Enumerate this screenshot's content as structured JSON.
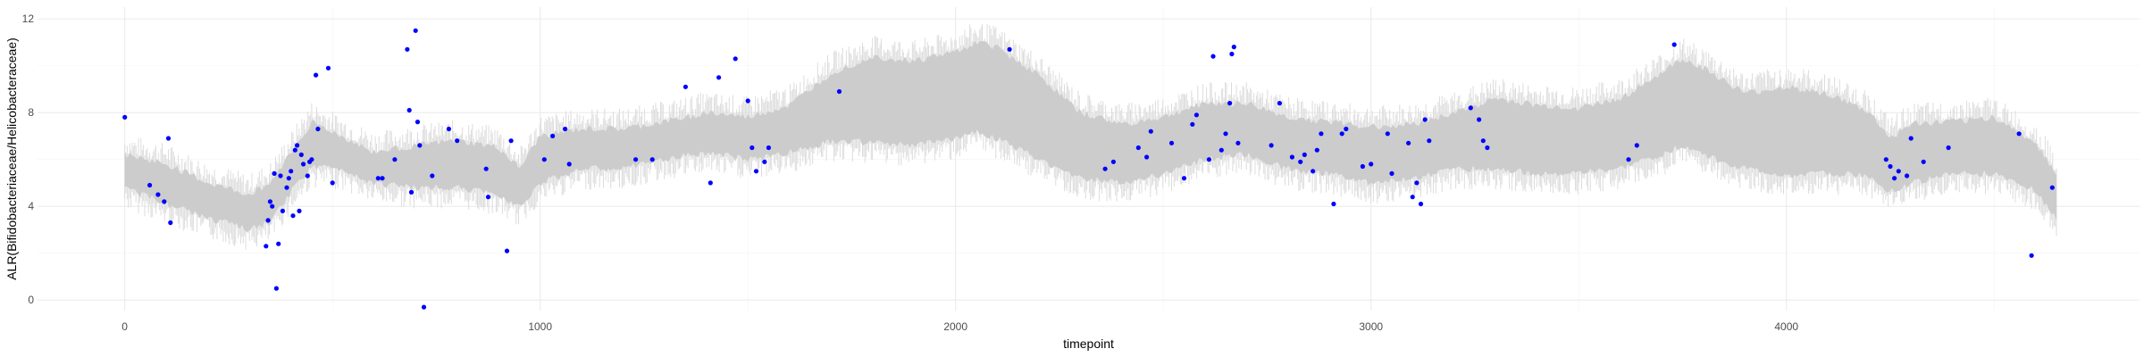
{
  "chart_data": {
    "type": "scatter",
    "xlabel": "timepoint",
    "ylabel": "ALR(Bifidobacteriaceae/Helicobacteraceae)",
    "xlim": [
      -210,
      4850
    ],
    "ylim": [
      -0.45,
      12.5
    ],
    "x_ticks": [
      0,
      1000,
      2000,
      3000,
      4000
    ],
    "y_ticks": [
      0,
      4,
      8,
      12
    ],
    "grid": true,
    "legend": "none",
    "colors": {
      "points": "#0000ff",
      "band": "#cccccc",
      "band_outer": "#dcdcdc",
      "grid_major": "#ebebeb",
      "grid_minor": "#f3f3f3"
    },
    "band": {
      "x": [
        0,
        100,
        200,
        300,
        350,
        400,
        450,
        520,
        600,
        700,
        800,
        900,
        950,
        1000,
        1100,
        1200,
        1300,
        1400,
        1500,
        1600,
        1700,
        1800,
        1900,
        2000,
        2050,
        2100,
        2200,
        2300,
        2400,
        2500,
        2600,
        2700,
        2800,
        2900,
        3000,
        3100,
        3200,
        3300,
        3400,
        3500,
        3600,
        3700,
        3750,
        3800,
        3900,
        4000,
        4100,
        4200,
        4250,
        4300,
        4400,
        4500,
        4600,
        4650
      ],
      "lower": [
        4.8,
        4.1,
        3.5,
        3.0,
        3.3,
        4.6,
        5.7,
        5.6,
        5.0,
        4.8,
        4.8,
        4.5,
        4.0,
        5.0,
        5.6,
        5.6,
        6.0,
        6.3,
        6.0,
        6.3,
        6.8,
        6.7,
        6.6,
        6.9,
        7.2,
        6.9,
        6.0,
        5.2,
        5.0,
        5.4,
        6.0,
        6.2,
        5.6,
        5.4,
        5.0,
        5.2,
        5.6,
        5.6,
        5.4,
        5.4,
        5.6,
        6.2,
        6.6,
        6.2,
        5.6,
        5.3,
        5.4,
        5.3,
        4.6,
        5.0,
        5.4,
        5.4,
        4.7,
        3.4
      ],
      "upper": [
        6.2,
        5.8,
        5.0,
        4.5,
        5.0,
        6.3,
        7.6,
        7.0,
        6.3,
        6.6,
        6.8,
        6.5,
        5.6,
        7.0,
        7.3,
        7.3,
        7.6,
        8.0,
        7.8,
        8.3,
        9.7,
        10.4,
        10.2,
        10.6,
        11.0,
        10.8,
        9.6,
        8.0,
        7.5,
        7.8,
        8.4,
        8.4,
        7.8,
        7.6,
        7.4,
        7.5,
        8.0,
        8.6,
        8.3,
        8.2,
        8.6,
        9.7,
        10.3,
        9.9,
        8.8,
        9.1,
        8.8,
        8.0,
        6.9,
        7.5,
        7.6,
        7.8,
        6.7,
        5.4
      ]
    },
    "points": [
      [
        0,
        7.8
      ],
      [
        60,
        4.9
      ],
      [
        80,
        4.5
      ],
      [
        95,
        4.2
      ],
      [
        105,
        6.9
      ],
      [
        110,
        3.3
      ],
      [
        340,
        2.3
      ],
      [
        345,
        3.4
      ],
      [
        350,
        4.2
      ],
      [
        355,
        4.0
      ],
      [
        360,
        5.4
      ],
      [
        365,
        0.5
      ],
      [
        370,
        2.4
      ],
      [
        375,
        5.3
      ],
      [
        380,
        3.8
      ],
      [
        390,
        4.8
      ],
      [
        395,
        5.2
      ],
      [
        400,
        5.5
      ],
      [
        405,
        3.6
      ],
      [
        410,
        6.4
      ],
      [
        415,
        6.6
      ],
      [
        420,
        3.8
      ],
      [
        425,
        6.2
      ],
      [
        430,
        5.8
      ],
      [
        440,
        5.3
      ],
      [
        445,
        5.9
      ],
      [
        450,
        6.0
      ],
      [
        460,
        9.6
      ],
      [
        465,
        7.3
      ],
      [
        490,
        9.9
      ],
      [
        500,
        5.0
      ],
      [
        610,
        5.2
      ],
      [
        620,
        5.2
      ],
      [
        650,
        6.0
      ],
      [
        680,
        10.7
      ],
      [
        685,
        8.1
      ],
      [
        690,
        4.6
      ],
      [
        700,
        11.5
      ],
      [
        705,
        7.6
      ],
      [
        710,
        6.6
      ],
      [
        720,
        -0.3
      ],
      [
        740,
        5.3
      ],
      [
        780,
        7.3
      ],
      [
        800,
        6.8
      ],
      [
        870,
        5.6
      ],
      [
        875,
        4.4
      ],
      [
        920,
        2.1
      ],
      [
        930,
        6.8
      ],
      [
        1010,
        6.0
      ],
      [
        1030,
        7.0
      ],
      [
        1060,
        7.3
      ],
      [
        1070,
        5.8
      ],
      [
        1230,
        6.0
      ],
      [
        1270,
        6.0
      ],
      [
        1350,
        9.1
      ],
      [
        1410,
        5.0
      ],
      [
        1430,
        9.5
      ],
      [
        1470,
        10.3
      ],
      [
        1500,
        8.5
      ],
      [
        1510,
        6.5
      ],
      [
        1520,
        5.5
      ],
      [
        1540,
        5.9
      ],
      [
        1550,
        6.5
      ],
      [
        1720,
        8.9
      ],
      [
        2130,
        10.7
      ],
      [
        2360,
        5.6
      ],
      [
        2380,
        5.9
      ],
      [
        2440,
        6.5
      ],
      [
        2460,
        6.1
      ],
      [
        2470,
        7.2
      ],
      [
        2520,
        6.7
      ],
      [
        2550,
        5.2
      ],
      [
        2570,
        7.5
      ],
      [
        2580,
        7.9
      ],
      [
        2610,
        6.0
      ],
      [
        2620,
        10.4
      ],
      [
        2640,
        6.4
      ],
      [
        2650,
        7.1
      ],
      [
        2660,
        8.4
      ],
      [
        2665,
        10.5
      ],
      [
        2670,
        10.8
      ],
      [
        2680,
        6.7
      ],
      [
        2760,
        6.6
      ],
      [
        2780,
        8.4
      ],
      [
        2810,
        6.1
      ],
      [
        2830,
        5.9
      ],
      [
        2840,
        6.2
      ],
      [
        2860,
        5.5
      ],
      [
        2870,
        6.4
      ],
      [
        2880,
        7.1
      ],
      [
        2910,
        4.1
      ],
      [
        2930,
        7.1
      ],
      [
        2940,
        7.3
      ],
      [
        2980,
        5.7
      ],
      [
        3000,
        5.8
      ],
      [
        3040,
        7.1
      ],
      [
        3050,
        5.4
      ],
      [
        3090,
        6.7
      ],
      [
        3100,
        4.4
      ],
      [
        3110,
        5.0
      ],
      [
        3120,
        4.1
      ],
      [
        3130,
        7.7
      ],
      [
        3140,
        6.8
      ],
      [
        3240,
        8.2
      ],
      [
        3260,
        7.7
      ],
      [
        3270,
        6.8
      ],
      [
        3280,
        6.5
      ],
      [
        3620,
        6.0
      ],
      [
        3640,
        6.6
      ],
      [
        3730,
        10.9
      ],
      [
        4240,
        6.0
      ],
      [
        4250,
        5.7
      ],
      [
        4260,
        5.2
      ],
      [
        4270,
        5.5
      ],
      [
        4290,
        5.3
      ],
      [
        4300,
        6.9
      ],
      [
        4330,
        5.9
      ],
      [
        4390,
        6.5
      ],
      [
        4560,
        7.1
      ],
      [
        4590,
        1.9
      ],
      [
        4640,
        4.8
      ]
    ]
  }
}
